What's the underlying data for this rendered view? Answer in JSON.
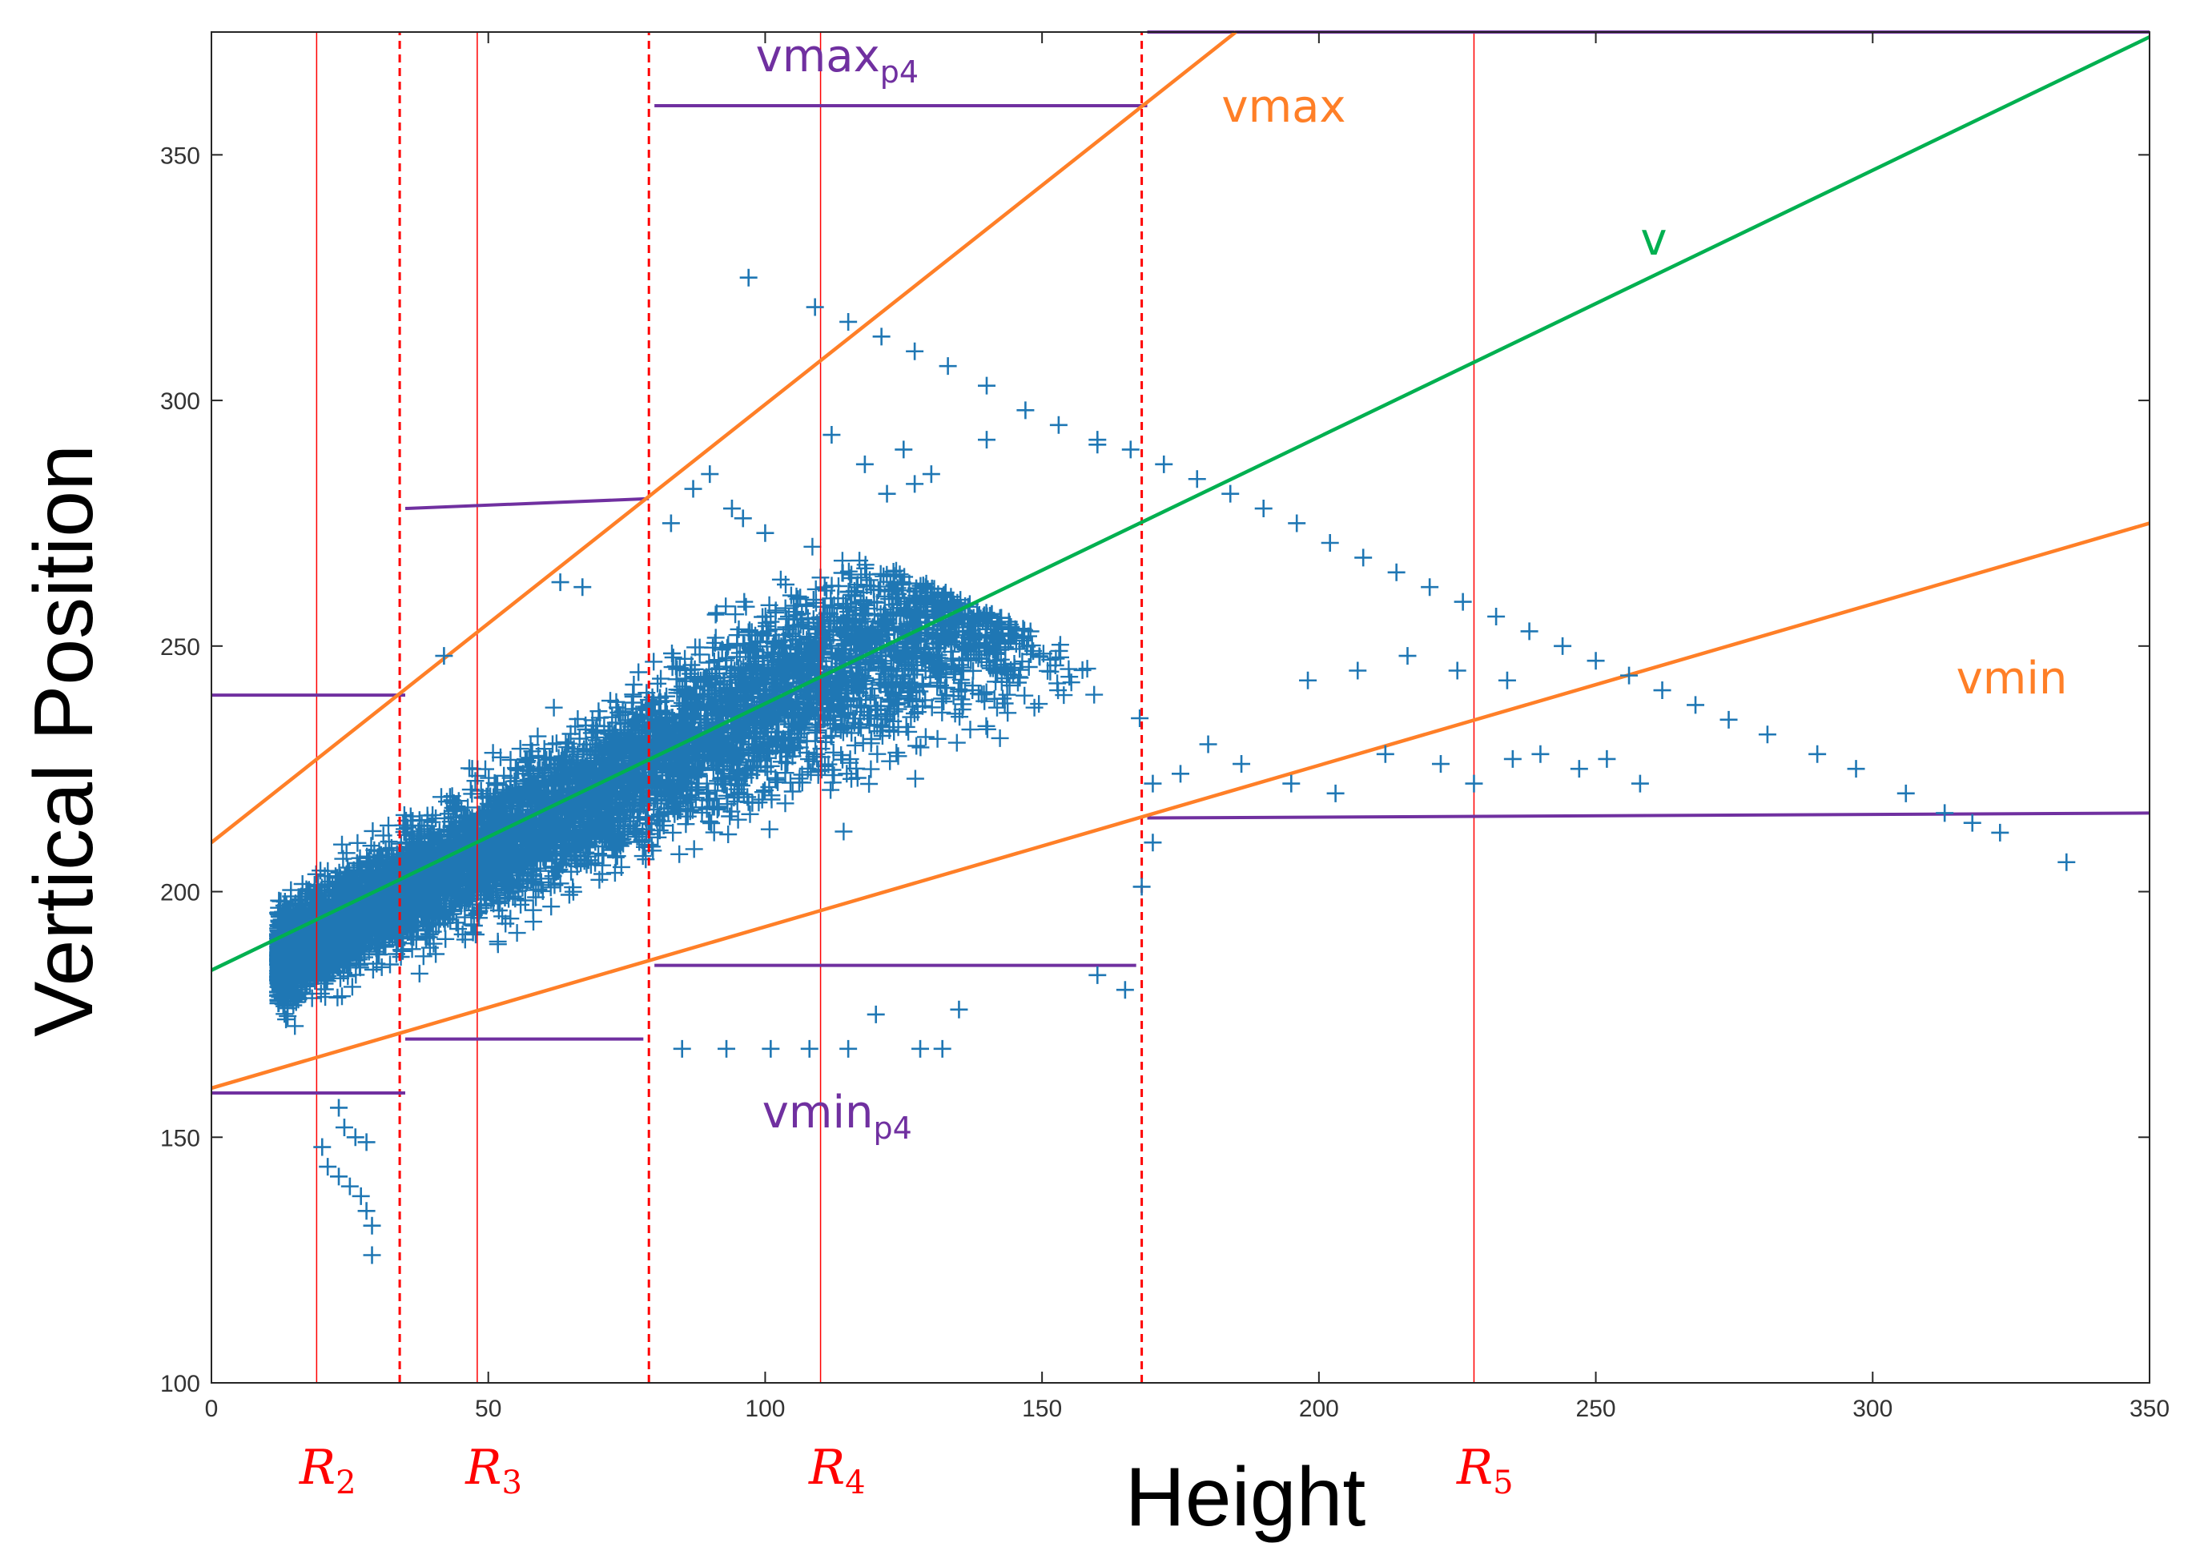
{
  "chart_data": {
    "type": "scatter",
    "xlabel": "Height",
    "ylabel": "Vertical Position",
    "xlim": [
      0,
      350
    ],
    "ylim": [
      100,
      375
    ],
    "xticks": [
      "0",
      "50",
      "100",
      "150",
      "200",
      "250",
      "300",
      "350"
    ],
    "yticks": [
      "100",
      "150",
      "200",
      "250",
      "300",
      "350"
    ],
    "grid": false,
    "colors": {
      "points": "#1f77b4",
      "trend_v": "#00b050",
      "bounds": "#ff7f27",
      "p4_bounds": "#7030a0",
      "regions": "#ff0000"
    },
    "lines": [
      {
        "label": "v",
        "x": [
          0,
          350
        ],
        "y": [
          184,
          374
        ]
      },
      {
        "label": "vmax",
        "x": [
          0,
          185
        ],
        "y": [
          210,
          375
        ]
      },
      {
        "label": "vmin",
        "x": [
          0,
          350
        ],
        "y": [
          160,
          275
        ]
      }
    ],
    "p4_segments": [
      {
        "x": [
          0,
          35
        ],
        "y": [
          240,
          240
        ]
      },
      {
        "x": [
          35,
          79
        ],
        "y": [
          278,
          280
        ]
      },
      {
        "x": [
          80,
          169
        ],
        "y": [
          360,
          360
        ]
      },
      {
        "x": [
          169,
          350
        ],
        "y": [
          375,
          375
        ]
      },
      {
        "x": [
          0,
          35
        ],
        "y": [
          159,
          159
        ]
      },
      {
        "x": [
          35,
          78
        ],
        "y": [
          170,
          170
        ]
      },
      {
        "x": [
          80,
          167
        ],
        "y": [
          185,
          185
        ]
      },
      {
        "x": [
          169,
          350
        ],
        "y": [
          215,
          216
        ]
      }
    ],
    "p4_labels": [
      {
        "base": "vmax",
        "sub": "p4",
        "x": 113,
        "y": 367
      },
      {
        "base": "vmin",
        "sub": "p4",
        "x": 113,
        "y": 152
      }
    ],
    "region_boundaries": [
      {
        "x": [
          19,
          19
        ],
        "y": [
          100,
          375
        ],
        "style": "solid"
      },
      {
        "x": [
          34,
          34
        ],
        "y": [
          100,
          375
        ],
        "style": "dashed"
      },
      {
        "x": [
          48,
          48
        ],
        "y": [
          100,
          375
        ],
        "style": "solid"
      },
      {
        "x": [
          79,
          79
        ],
        "y": [
          100,
          375
        ],
        "style": "dashed"
      },
      {
        "x": [
          110,
          110
        ],
        "y": [
          100,
          375
        ],
        "style": "solid"
      },
      {
        "x": [
          168,
          168
        ],
        "y": [
          100,
          375
        ],
        "style": "dashed"
      },
      {
        "x": [
          228,
          228
        ],
        "y": [
          100,
          375
        ],
        "style": "solid"
      }
    ],
    "region_labels": [
      {
        "base": "R",
        "sub": "2",
        "x": 21
      },
      {
        "base": "R",
        "sub": "3",
        "x": 51
      },
      {
        "base": "R",
        "sub": "4",
        "x": 113
      },
      {
        "base": "R",
        "sub": "5",
        "x": 230
      }
    ],
    "series": [
      {
        "marker": "+",
        "points": [
          [
            97,
            325
          ],
          [
            109,
            319
          ],
          [
            115,
            316
          ],
          [
            121,
            313
          ],
          [
            127,
            310
          ],
          [
            133,
            307
          ],
          [
            140,
            303
          ],
          [
            147,
            298
          ],
          [
            153,
            295
          ],
          [
            160,
            292
          ],
          [
            166,
            290
          ],
          [
            172,
            287
          ],
          [
            178,
            284
          ],
          [
            184,
            281
          ],
          [
            190,
            278
          ],
          [
            196,
            275
          ],
          [
            202,
            271
          ],
          [
            208,
            268
          ],
          [
            214,
            265
          ],
          [
            220,
            262
          ],
          [
            226,
            259
          ],
          [
            232,
            256
          ],
          [
            238,
            253
          ],
          [
            244,
            250
          ],
          [
            250,
            247
          ],
          [
            256,
            244
          ],
          [
            262,
            241
          ],
          [
            268,
            238
          ],
          [
            274,
            235
          ],
          [
            281,
            232
          ],
          [
            290,
            228
          ],
          [
            297,
            225
          ],
          [
            306,
            220
          ],
          [
            313,
            216
          ],
          [
            318,
            214
          ],
          [
            323,
            212
          ],
          [
            335,
            206
          ],
          [
            235,
            227
          ],
          [
            240,
            228
          ],
          [
            247,
            225
          ],
          [
            252,
            227
          ],
          [
            258,
            222
          ],
          [
            228,
            222
          ],
          [
            222,
            226
          ],
          [
            212,
            228
          ],
          [
            203,
            220
          ],
          [
            195,
            222
          ],
          [
            186,
            226
          ],
          [
            180,
            230
          ],
          [
            175,
            224
          ],
          [
            170,
            222
          ],
          [
            198,
            243
          ],
          [
            207,
            245
          ],
          [
            216,
            248
          ],
          [
            225,
            245
          ],
          [
            234,
            243
          ],
          [
            20,
            148
          ],
          [
            21,
            144
          ],
          [
            23,
            142
          ],
          [
            25,
            140
          ],
          [
            27,
            138
          ],
          [
            28,
            135
          ],
          [
            29,
            132
          ],
          [
            29,
            126
          ],
          [
            24,
            152
          ],
          [
            26,
            150
          ],
          [
            28,
            149
          ],
          [
            23,
            156
          ],
          [
            85,
            168
          ],
          [
            93,
            168
          ],
          [
            101,
            168
          ],
          [
            108,
            168
          ],
          [
            115,
            168
          ],
          [
            128,
            168
          ],
          [
            132,
            168
          ],
          [
            120,
            175
          ],
          [
            135,
            176
          ],
          [
            160,
            183
          ],
          [
            165,
            180
          ],
          [
            42,
            248
          ],
          [
            63,
            263
          ],
          [
            67,
            262
          ],
          [
            83,
            275
          ],
          [
            87,
            282
          ],
          [
            90,
            285
          ],
          [
            94,
            278
          ],
          [
            96,
            276
          ],
          [
            100,
            273
          ],
          [
            127,
            283
          ],
          [
            125,
            290
          ],
          [
            122,
            281
          ],
          [
            118,
            287
          ],
          [
            130,
            285
          ],
          [
            112,
            293
          ],
          [
            140,
            292
          ],
          [
            160,
            291
          ],
          [
            168,
            201
          ],
          [
            170,
            210
          ]
        ]
      }
    ]
  }
}
